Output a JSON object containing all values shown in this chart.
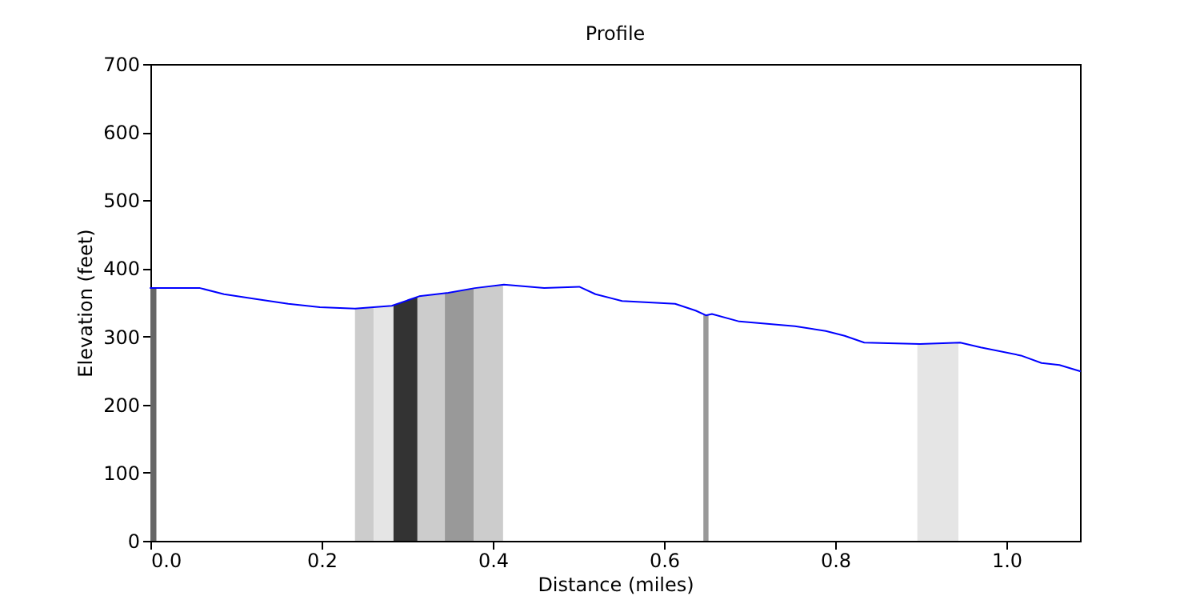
{
  "chart_data": {
    "type": "line",
    "title": "Profile",
    "xlabel": "Distance (miles)",
    "ylabel": "Elevation (feet)",
    "xlim": [
      0,
      1.086
    ],
    "ylim": [
      0,
      700
    ],
    "xticks": [
      {
        "value": 0,
        "label": "0.0"
      },
      0.2,
      0.4,
      0.6,
      0.8,
      {
        "value": 1,
        "label": "1.0"
      }
    ],
    "yticks": [
      0,
      100,
      200,
      300,
      400,
      500,
      600,
      700
    ],
    "grid": false,
    "series": [
      {
        "type": "area",
        "color": "#666666",
        "x": [
          0,
          0.007
        ],
        "values": [
          371,
          371
        ]
      },
      {
        "type": "area",
        "color": "#cccccc",
        "x": [
          0.239,
          0.261
        ],
        "values": [
          341,
          343
        ]
      },
      {
        "type": "area",
        "color": "#e5e5e5",
        "x": [
          0.261,
          0.284
        ],
        "values": [
          343,
          346
        ]
      },
      {
        "type": "area",
        "color": "#333333",
        "x": [
          0.284,
          0.312
        ],
        "values": [
          346,
          358
        ]
      },
      {
        "type": "area",
        "color": "#cccccc",
        "x": [
          0.312,
          0.344
        ],
        "values": [
          358,
          363
        ]
      },
      {
        "type": "area",
        "color": "#999999",
        "x": [
          0.344,
          0.378
        ],
        "values": [
          363,
          371
        ]
      },
      {
        "type": "area",
        "color": "#cccccc",
        "x": [
          0.378,
          0.412
        ],
        "values": [
          371,
          376
        ]
      },
      {
        "type": "area",
        "color": "#999999",
        "x": [
          0.646,
          0.652
        ],
        "values": [
          332,
          331
        ]
      },
      {
        "type": "area",
        "color": "#e5e5e5",
        "x": [
          0.896,
          0.944
        ],
        "values": [
          289,
          291
        ]
      },
      {
        "color": "#0000ff",
        "x": [
          0,
          0.058,
          0.086,
          0.123,
          0.161,
          0.198,
          0.239,
          0.282,
          0.314,
          0.348,
          0.379,
          0.413,
          0.46,
          0.501,
          0.52,
          0.551,
          0.613,
          0.637,
          0.649,
          0.656,
          0.688,
          0.753,
          0.789,
          0.811,
          0.834,
          0.899,
          0.946,
          0.97,
          1.017,
          1.041,
          1.062,
          1.086
        ],
        "values": [
          371,
          371,
          362,
          355,
          348,
          343,
          341,
          345,
          359,
          364,
          371,
          376,
          371,
          373,
          362,
          352,
          348,
          338,
          331,
          333,
          322,
          315,
          308,
          301,
          291,
          289,
          291,
          284,
          272,
          261,
          258,
          249
        ]
      }
    ]
  }
}
